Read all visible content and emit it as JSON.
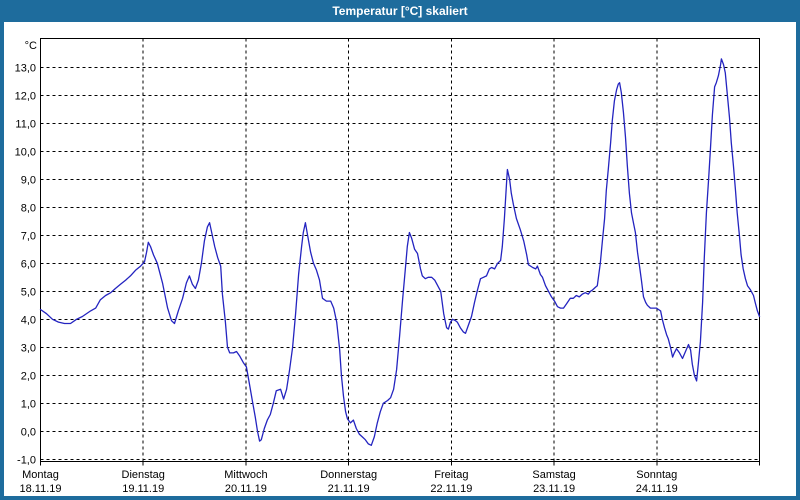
{
  "window": {
    "title": "Temperatur [°C] skaliert",
    "frame_color": "#1e6c9d",
    "background": "#ffffff"
  },
  "chart_data": {
    "type": "line",
    "title": "Temperatur [°C] skaliert",
    "ylabel_unit": "°C",
    "grid": "dashed",
    "legend": "none",
    "line_color": "#2424c0",
    "y_axis": {
      "min": -1,
      "max": 13,
      "step": 1,
      "tick_labels": [
        "13,0",
        "12,0",
        "11,0",
        "10,0",
        "9,0",
        "8,0",
        "7,0",
        "6,0",
        "5,0",
        "4,0",
        "3,0",
        "2,0",
        "1,0",
        "0,0",
        "-1,0"
      ]
    },
    "x_axis": {
      "total_hours": 168,
      "days": [
        {
          "name": "Montag",
          "date": "18.11.19"
        },
        {
          "name": "Dienstag",
          "date": "19.11.19"
        },
        {
          "name": "Mittwoch",
          "date": "20.11.19"
        },
        {
          "name": "Donnerstag",
          "date": "21.11.19"
        },
        {
          "name": "Freitag",
          "date": "22.11.19"
        },
        {
          "name": "Samstag",
          "date": "23.11.19"
        },
        {
          "name": "Sonntag",
          "date": "24.11.19"
        }
      ]
    },
    "series": [
      {
        "name": "Temperatur [°C]",
        "points_hours_temp": [
          [
            0,
            4.35
          ],
          [
            1.4,
            4.2
          ],
          [
            2.8,
            4.0
          ],
          [
            4.2,
            3.9
          ],
          [
            5.6,
            3.85
          ],
          [
            7,
            3.85
          ],
          [
            8.4,
            4.0
          ],
          [
            9.8,
            4.1
          ],
          [
            11.7,
            4.3
          ],
          [
            12.9,
            4.4
          ],
          [
            14,
            4.7
          ],
          [
            15.2,
            4.85
          ],
          [
            16.4,
            4.95
          ],
          [
            17.5,
            5.1
          ],
          [
            18.7,
            5.25
          ],
          [
            19.9,
            5.4
          ],
          [
            21,
            5.55
          ],
          [
            22.2,
            5.75
          ],
          [
            23.4,
            5.9
          ],
          [
            24.3,
            6.05
          ],
          [
            24.8,
            6.4
          ],
          [
            25.2,
            6.75
          ],
          [
            25.7,
            6.6
          ],
          [
            26.4,
            6.3
          ],
          [
            27.3,
            6.0
          ],
          [
            28.5,
            5.3
          ],
          [
            29.7,
            4.4
          ],
          [
            30.6,
            3.95
          ],
          [
            31.3,
            3.85
          ],
          [
            32.2,
            4.3
          ],
          [
            33.2,
            4.75
          ],
          [
            34.1,
            5.3
          ],
          [
            34.8,
            5.55
          ],
          [
            35.5,
            5.25
          ],
          [
            36.2,
            5.1
          ],
          [
            36.9,
            5.4
          ],
          [
            37.6,
            6.0
          ],
          [
            38.3,
            6.8
          ],
          [
            39,
            7.3
          ],
          [
            39.5,
            7.45
          ],
          [
            40,
            7.1
          ],
          [
            40.7,
            6.6
          ],
          [
            41.4,
            6.2
          ],
          [
            42.1,
            5.9
          ],
          [
            42.5,
            4.9
          ],
          [
            43.2,
            3.9
          ],
          [
            43.7,
            3.0
          ],
          [
            44.2,
            2.8
          ],
          [
            45.1,
            2.8
          ],
          [
            45.8,
            2.85
          ],
          [
            46.5,
            2.7
          ],
          [
            47.4,
            2.45
          ],
          [
            48.1,
            2.3
          ],
          [
            48.8,
            1.7
          ],
          [
            49.5,
            1.1
          ],
          [
            50.2,
            0.5
          ],
          [
            50.7,
            0.0
          ],
          [
            51.2,
            -0.35
          ],
          [
            51.6,
            -0.3
          ],
          [
            52.3,
            0.1
          ],
          [
            53,
            0.4
          ],
          [
            53.7,
            0.6
          ],
          [
            54.4,
            1.0
          ],
          [
            55.1,
            1.45
          ],
          [
            56.1,
            1.5
          ],
          [
            56.8,
            1.15
          ],
          [
            57.5,
            1.5
          ],
          [
            58.2,
            2.2
          ],
          [
            58.9,
            3.0
          ],
          [
            59.6,
            4.2
          ],
          [
            60.3,
            5.6
          ],
          [
            61,
            6.6
          ],
          [
            61.4,
            7.1
          ],
          [
            61.9,
            7.45
          ],
          [
            62.4,
            7.0
          ],
          [
            63.1,
            6.4
          ],
          [
            63.8,
            6.0
          ],
          [
            64.5,
            5.75
          ],
          [
            65.2,
            5.4
          ],
          [
            65.9,
            4.75
          ],
          [
            66.8,
            4.65
          ],
          [
            67.8,
            4.65
          ],
          [
            68.5,
            4.4
          ],
          [
            69.2,
            3.9
          ],
          [
            69.9,
            2.9
          ],
          [
            70.3,
            2.0
          ],
          [
            70.8,
            1.25
          ],
          [
            71.3,
            0.7
          ],
          [
            71.7,
            0.45
          ],
          [
            72.4,
            0.3
          ],
          [
            73.1,
            0.4
          ],
          [
            73.8,
            0.1
          ],
          [
            74.5,
            -0.1
          ],
          [
            75.2,
            -0.2
          ],
          [
            75.9,
            -0.3
          ],
          [
            76.6,
            -0.45
          ],
          [
            77.3,
            -0.5
          ],
          [
            78,
            -0.2
          ],
          [
            78.7,
            0.3
          ],
          [
            79.4,
            0.7
          ],
          [
            80.1,
            1.0
          ],
          [
            81.1,
            1.1
          ],
          [
            81.8,
            1.2
          ],
          [
            82.5,
            1.5
          ],
          [
            83.2,
            2.2
          ],
          [
            83.9,
            3.4
          ],
          [
            84.6,
            4.7
          ],
          [
            85.3,
            5.9
          ],
          [
            85.7,
            6.6
          ],
          [
            86.2,
            7.1
          ],
          [
            86.7,
            6.9
          ],
          [
            87.4,
            6.5
          ],
          [
            88.1,
            6.35
          ],
          [
            88.8,
            5.8
          ],
          [
            89.2,
            5.55
          ],
          [
            89.9,
            5.45
          ],
          [
            90.6,
            5.5
          ],
          [
            91.4,
            5.5
          ],
          [
            92.1,
            5.4
          ],
          [
            92.8,
            5.2
          ],
          [
            93.5,
            5.0
          ],
          [
            94.2,
            4.2
          ],
          [
            94.9,
            3.7
          ],
          [
            95.3,
            3.65
          ],
          [
            95.8,
            3.9
          ],
          [
            96.3,
            4.0
          ],
          [
            97,
            3.95
          ],
          [
            97.4,
            3.9
          ],
          [
            98.1,
            3.7
          ],
          [
            98.8,
            3.55
          ],
          [
            99.3,
            3.5
          ],
          [
            100,
            3.8
          ],
          [
            100.7,
            4.1
          ],
          [
            101.4,
            4.6
          ],
          [
            102.1,
            5.05
          ],
          [
            102.8,
            5.45
          ],
          [
            103.5,
            5.5
          ],
          [
            104.2,
            5.55
          ],
          [
            104.9,
            5.8
          ],
          [
            105.4,
            5.85
          ],
          [
            106.1,
            5.8
          ],
          [
            106.8,
            6.0
          ],
          [
            107.5,
            6.1
          ],
          [
            107.9,
            6.6
          ],
          [
            108.4,
            7.6
          ],
          [
            108.9,
            8.9
          ],
          [
            109.1,
            9.35
          ],
          [
            109.6,
            9.0
          ],
          [
            110,
            8.5
          ],
          [
            110.5,
            8.1
          ],
          [
            111.2,
            7.6
          ],
          [
            112.1,
            7.2
          ],
          [
            112.9,
            6.8
          ],
          [
            113.6,
            6.3
          ],
          [
            114,
            5.95
          ],
          [
            115,
            5.85
          ],
          [
            115.7,
            5.8
          ],
          [
            116.1,
            5.9
          ],
          [
            116.8,
            5.6
          ],
          [
            117.3,
            5.5
          ],
          [
            118,
            5.2
          ],
          [
            118.7,
            5.0
          ],
          [
            119.4,
            4.8
          ],
          [
            120.1,
            4.65
          ],
          [
            120.8,
            4.45
          ],
          [
            121.5,
            4.4
          ],
          [
            122.2,
            4.4
          ],
          [
            122.9,
            4.55
          ],
          [
            123.8,
            4.75
          ],
          [
            124.5,
            4.75
          ],
          [
            125.2,
            4.85
          ],
          [
            125.9,
            4.8
          ],
          [
            126.6,
            4.9
          ],
          [
            127.3,
            4.95
          ],
          [
            128,
            4.9
          ],
          [
            128.5,
            5.0
          ],
          [
            129,
            5.05
          ],
          [
            129.7,
            5.15
          ],
          [
            130.1,
            5.2
          ],
          [
            130.8,
            6.0
          ],
          [
            131.3,
            6.8
          ],
          [
            131.8,
            7.6
          ],
          [
            132.2,
            8.6
          ],
          [
            132.7,
            9.4
          ],
          [
            133.2,
            10.3
          ],
          [
            133.6,
            11.1
          ],
          [
            134.1,
            11.8
          ],
          [
            134.6,
            12.2
          ],
          [
            135,
            12.4
          ],
          [
            135.3,
            12.45
          ],
          [
            135.7,
            12.1
          ],
          [
            136.2,
            11.4
          ],
          [
            136.7,
            10.5
          ],
          [
            137.1,
            9.5
          ],
          [
            137.6,
            8.5
          ],
          [
            138.1,
            7.8
          ],
          [
            138.6,
            7.4
          ],
          [
            139,
            7.1
          ],
          [
            139.5,
            6.4
          ],
          [
            140,
            5.85
          ],
          [
            140.4,
            5.4
          ],
          [
            140.9,
            4.8
          ],
          [
            141.4,
            4.6
          ],
          [
            141.8,
            4.5
          ],
          [
            142.5,
            4.4
          ],
          [
            143.9,
            4.4
          ],
          [
            144.4,
            4.35
          ],
          [
            144.9,
            4.3
          ],
          [
            145.3,
            4.0
          ],
          [
            145.8,
            3.7
          ],
          [
            146.3,
            3.45
          ],
          [
            146.7,
            3.3
          ],
          [
            147.2,
            3.0
          ],
          [
            147.7,
            2.65
          ],
          [
            148.1,
            2.8
          ],
          [
            148.6,
            2.95
          ],
          [
            149.3,
            2.8
          ],
          [
            150,
            2.6
          ],
          [
            150.7,
            2.85
          ],
          [
            151.4,
            3.1
          ],
          [
            151.9,
            2.9
          ],
          [
            152.3,
            2.4
          ],
          [
            152.8,
            2.0
          ],
          [
            153.3,
            1.8
          ],
          [
            153.7,
            2.4
          ],
          [
            154.2,
            3.2
          ],
          [
            154.7,
            4.6
          ],
          [
            155.1,
            6.2
          ],
          [
            155.6,
            7.8
          ],
          [
            156.1,
            9.0
          ],
          [
            156.5,
            10.0
          ],
          [
            157,
            11.3
          ],
          [
            157.5,
            12.3
          ],
          [
            157.9,
            12.45
          ],
          [
            158.4,
            12.7
          ],
          [
            158.9,
            13.1
          ],
          [
            159.1,
            13.3
          ],
          [
            159.6,
            13.1
          ],
          [
            160,
            12.8
          ],
          [
            160.5,
            12.0
          ],
          [
            161,
            11.2
          ],
          [
            161.4,
            10.3
          ],
          [
            161.9,
            9.5
          ],
          [
            162.4,
            8.6
          ],
          [
            162.8,
            7.8
          ],
          [
            163.3,
            7.0
          ],
          [
            163.7,
            6.3
          ],
          [
            164.2,
            5.8
          ],
          [
            164.7,
            5.45
          ],
          [
            165.2,
            5.2
          ],
          [
            165.9,
            5.05
          ],
          [
            166.6,
            4.85
          ],
          [
            167,
            4.6
          ],
          [
            167.5,
            4.3
          ],
          [
            168,
            4.1
          ]
        ]
      }
    ]
  }
}
